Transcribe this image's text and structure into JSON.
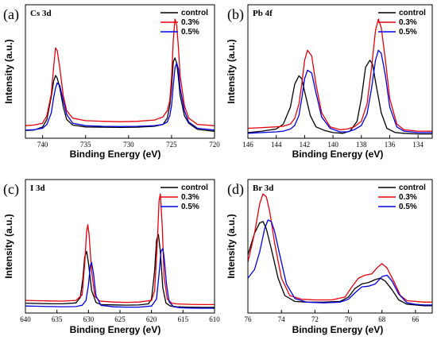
{
  "colors": {
    "control": "#000000",
    "0.3%": "#e8000b",
    "0.5%": "#0000e6"
  },
  "chart_data": [
    {
      "type": "line",
      "panel_label": "(a)",
      "element_label": "Cs 3d",
      "xlabel": "Binding Energy (eV)",
      "ylabel": "Intensity (a.u.)",
      "xlim": [
        742,
        720
      ],
      "xticks": [
        740,
        735,
        730,
        725,
        720
      ],
      "yticks_visible": false,
      "legend": "top-right",
      "series": [
        {
          "name": "control",
          "x": [
            742,
            741,
            740,
            739.5,
            739,
            738.7,
            738.5,
            738.3,
            738,
            737.6,
            737.2,
            736.5,
            735,
            733,
            731,
            729,
            727,
            726,
            725.5,
            725.2,
            725,
            724.8,
            724.6,
            724.4,
            724.2,
            724,
            723.5,
            723,
            722,
            720
          ],
          "y": [
            6.2,
            6.5,
            9,
            15,
            33,
            46,
            50,
            48,
            40,
            25,
            15,
            10.5,
            9,
            8.8,
            8.6,
            8.8,
            9.5,
            11,
            16,
            26,
            40,
            61,
            64,
            60,
            48,
            34,
            18,
            12,
            7,
            5.5
          ]
        },
        {
          "name": "0.3%",
          "x": [
            742,
            741,
            740,
            739.5,
            739,
            738.7,
            738.5,
            738.3,
            738,
            737.6,
            737.2,
            736.5,
            735,
            733,
            731,
            729,
            727,
            726,
            725.5,
            725.2,
            725,
            724.8,
            724.6,
            724.4,
            724.2,
            724,
            723.5,
            723,
            722,
            720
          ],
          "y": [
            10,
            10.5,
            12,
            18,
            35,
            58,
            72,
            70,
            56,
            34,
            22,
            16,
            14,
            13.5,
            13.2,
            13.5,
            14.5,
            17,
            22,
            30,
            48,
            78,
            95,
            90,
            72,
            50,
            26,
            16,
            11,
            10
          ]
        },
        {
          "name": "0.5%",
          "x": [
            742,
            741,
            740,
            739.5,
            739,
            738.7,
            738.5,
            738.3,
            738,
            737.6,
            737.2,
            736.5,
            735,
            733,
            731,
            729,
            727,
            726,
            725.5,
            725.2,
            725,
            724.8,
            724.6,
            724.4,
            724.2,
            724,
            723.5,
            723,
            722,
            720
          ],
          "y": [
            6.5,
            6.8,
            8,
            11,
            20,
            33,
            40,
            44,
            42,
            30,
            19,
            12,
            10,
            9.5,
            9.3,
            9.5,
            10,
            11,
            13,
            18,
            26,
            42,
            56,
            60,
            55,
            40,
            22,
            13,
            8,
            6.5
          ]
        }
      ]
    },
    {
      "type": "line",
      "panel_label": "(b)",
      "element_label": "Pb 4f",
      "xlabel": "Binding Energy (eV)",
      "ylabel": "Intensity (a.u.)",
      "xlim": [
        146,
        133
      ],
      "xticks": [
        146,
        144,
        142,
        140,
        138,
        136,
        134
      ],
      "yticks_visible": false,
      "legend": "top-right",
      "series": [
        {
          "name": "control",
          "x": [
            146,
            145,
            144,
            143.5,
            143,
            142.7,
            142.4,
            142.2,
            142,
            141.6,
            141.2,
            140.6,
            140,
            139.3,
            138.8,
            138.3,
            138,
            137.7,
            137.4,
            137.2,
            137,
            136.6,
            136.2,
            135.6,
            135,
            134,
            133
          ],
          "y": [
            4,
            5,
            6.5,
            10,
            22,
            38,
            44,
            42,
            33,
            16,
            8,
            5.5,
            4,
            3.5,
            5,
            12,
            28,
            50,
            55,
            52,
            40,
            18,
            7,
            4,
            3.5,
            3,
            3
          ]
        },
        {
          "name": "0.3%",
          "x": [
            146,
            145,
            144,
            143.5,
            143,
            142.7,
            142.4,
            142.2,
            142,
            141.8,
            141.5,
            141.2,
            140.8,
            140.2,
            139.5,
            139,
            138.5,
            138,
            137.6,
            137.3,
            137,
            136.8,
            136.6,
            136.3,
            136,
            135.5,
            135,
            134,
            133
          ],
          "y": [
            7,
            7.5,
            8,
            8.5,
            10,
            14,
            24,
            38,
            55,
            62,
            58,
            38,
            18,
            8,
            6,
            6.5,
            8,
            12,
            24,
            48,
            76,
            84,
            78,
            55,
            28,
            10,
            6,
            5,
            5
          ]
        },
        {
          "name": "0.5%",
          "x": [
            146,
            145,
            144,
            143.5,
            143,
            142.7,
            142.4,
            142.2,
            142,
            141.8,
            141.5,
            141.2,
            140.8,
            140.2,
            139.5,
            139,
            138.5,
            138,
            137.6,
            137.3,
            137,
            136.8,
            136.6,
            136.3,
            136,
            135.5,
            135,
            134,
            133
          ],
          "y": [
            3.5,
            4,
            4.5,
            5,
            6.5,
            9,
            16,
            28,
            42,
            48,
            46,
            32,
            15,
            7,
            4.5,
            4.5,
            6,
            9,
            17,
            34,
            55,
            62,
            60,
            44,
            22,
            8,
            5,
            4,
            4
          ]
        }
      ]
    },
    {
      "type": "line",
      "panel_label": "(c)",
      "element_label": "I 3d",
      "xlabel": "Binding Energy (eV)",
      "ylabel": "Intensity (a.u.)",
      "xlim": [
        640,
        610
      ],
      "xticks": [
        640,
        635,
        630,
        625,
        620,
        615,
        610
      ],
      "yticks_visible": false,
      "legend": "top-right",
      "series": [
        {
          "name": "control",
          "x": [
            640,
            638,
            636,
            634,
            632,
            631.3,
            630.9,
            630.6,
            630.3,
            630,
            629.5,
            628.8,
            628,
            626,
            624,
            622,
            620.5,
            620,
            619.5,
            619.2,
            618.9,
            618.6,
            618.2,
            617.7,
            617,
            616,
            614,
            612,
            610
          ],
          "y": [
            7,
            6.8,
            6.6,
            6.6,
            7.2,
            11,
            24,
            40,
            44,
            36,
            16,
            7.5,
            6,
            5.8,
            5.6,
            5.7,
            6.5,
            10,
            30,
            52,
            56,
            44,
            18,
            7,
            5,
            4.5,
            4.2,
            4,
            4
          ]
        },
        {
          "name": "0.3%",
          "x": [
            640,
            638,
            636,
            634,
            632,
            631,
            630.6,
            630.3,
            630.1,
            629.9,
            629.5,
            629,
            628.2,
            626,
            624,
            622,
            620,
            619.5,
            619.1,
            618.8,
            618.6,
            618.3,
            618,
            617.5,
            616.8,
            616,
            614,
            612,
            610
          ],
          "y": [
            9,
            8.8,
            8.6,
            8.5,
            9,
            13,
            35,
            58,
            63,
            56,
            30,
            12,
            8.5,
            7.8,
            7.6,
            7.8,
            9,
            16,
            48,
            80,
            85,
            62,
            26,
            10,
            7,
            6.5,
            6.2,
            6,
            6
          ]
        },
        {
          "name": "0.5%",
          "x": [
            640,
            638,
            636,
            634,
            632,
            631,
            630.4,
            630,
            629.7,
            629.5,
            629.2,
            628.8,
            628,
            626,
            624,
            622,
            620,
            619.2,
            618.8,
            618.5,
            618.2,
            618,
            617.6,
            617.2,
            616.5,
            615.5,
            614,
            612,
            610
          ],
          "y": [
            5,
            4.8,
            4.6,
            4.5,
            4.6,
            5.5,
            9,
            20,
            34,
            36,
            28,
            12,
            5.5,
            4.4,
            4.2,
            4.2,
            5,
            10,
            28,
            44,
            46,
            40,
            20,
            8,
            4.5,
            3.8,
            3.5,
            3.4,
            3.4
          ]
        }
      ]
    },
    {
      "type": "line",
      "panel_label": "(d)",
      "element_label": "Br 3d",
      "xlabel": "Binding Energy (eV)",
      "ylabel": "Intensity (a.u.)",
      "xlim": [
        76,
        65
      ],
      "xticks": [
        76,
        74,
        72,
        70,
        68,
        66
      ],
      "yticks_visible": false,
      "legend": "top-right",
      "series": [
        {
          "name": "control",
          "x": [
            76,
            75.6,
            75.3,
            75.1,
            74.9,
            74.6,
            74.2,
            73.8,
            73.2,
            72.5,
            71.5,
            70.5,
            70,
            69.6,
            69.2,
            68.8,
            68.4,
            68.1,
            67.8,
            67.4,
            67,
            66.5,
            66,
            65.5,
            65
          ],
          "y": [
            40,
            55,
            62,
            63,
            58,
            44,
            24,
            12,
            8,
            7.5,
            7.5,
            8,
            11,
            17,
            20,
            21,
            23,
            24,
            22,
            16,
            9,
            6,
            5.5,
            5,
            5
          ]
        },
        {
          "name": "0.3%",
          "x": [
            76,
            75.6,
            75.3,
            75.1,
            74.9,
            74.7,
            74.4,
            74,
            73.5,
            72.8,
            72,
            71,
            70.2,
            69.8,
            69.4,
            69,
            68.6,
            68.3,
            68,
            67.7,
            67.3,
            66.9,
            66.5,
            66,
            65.5,
            65
          ],
          "y": [
            35,
            55,
            75,
            82,
            80,
            70,
            48,
            24,
            12,
            9.5,
            9,
            9,
            11,
            18,
            24,
            26,
            27,
            31,
            34,
            31,
            22,
            12,
            8.5,
            8,
            7.5,
            7.5
          ]
        },
        {
          "name": "0.5%",
          "x": [
            76,
            75.6,
            75.3,
            75,
            74.8,
            74.6,
            74.4,
            74.1,
            73.7,
            73.2,
            72.5,
            71.5,
            70.5,
            70,
            69.6,
            69.2,
            68.8,
            68.4,
            68,
            67.7,
            67.4,
            67,
            66.5,
            66,
            65.5,
            65
          ],
          "y": [
            24,
            30,
            42,
            58,
            64,
            63,
            56,
            40,
            20,
            10,
            7.5,
            7,
            7.5,
            9.5,
            14,
            18,
            18.5,
            20,
            25,
            26,
            22,
            13,
            7,
            6,
            5.5,
            5.5
          ]
        }
      ]
    }
  ]
}
